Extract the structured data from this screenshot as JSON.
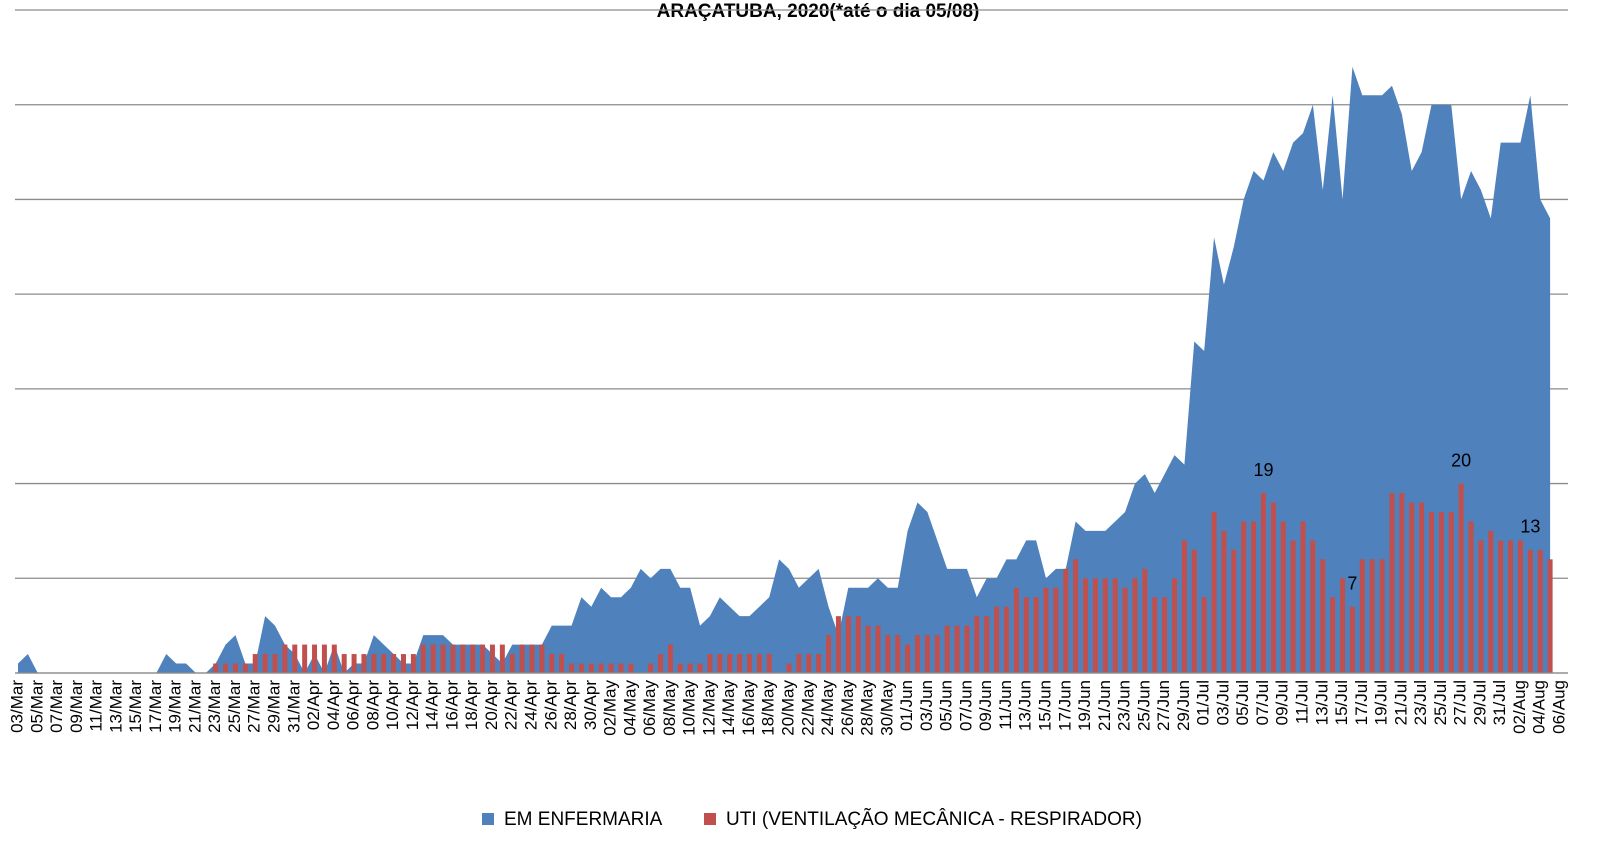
{
  "chart_data": {
    "type": "area_bar",
    "title": "ARAÇATUBA, 2020(*até o dia   05/08)",
    "categories": [
      "03/Mar",
      null,
      "05/Mar",
      null,
      "07/Mar",
      null,
      "09/Mar",
      null,
      "11/Mar",
      null,
      "13/Mar",
      null,
      "15/Mar",
      null,
      "17/Mar",
      null,
      "19/Mar",
      null,
      "21/Mar",
      null,
      "23/Mar",
      null,
      "25/Mar",
      null,
      "27/Mar",
      null,
      "29/Mar",
      null,
      "31/Mar",
      null,
      "02/Apr",
      null,
      "04/Apr",
      null,
      "06/Apr",
      null,
      "08/Apr",
      null,
      "10/Apr",
      null,
      "12/Apr",
      null,
      "14/Apr",
      null,
      "16/Apr",
      null,
      "18/Apr",
      null,
      "20/Apr",
      null,
      "22/Apr",
      null,
      "24/Apr",
      null,
      "26/Apr",
      null,
      "28/Apr",
      null,
      "30/Apr",
      null,
      "02/May",
      null,
      "04/May",
      null,
      "06/May",
      null,
      "08/May",
      null,
      "10/May",
      null,
      "12/May",
      null,
      "14/May",
      null,
      "16/May",
      null,
      "18/May",
      null,
      "20/May",
      null,
      "22/May",
      null,
      "24/May",
      null,
      "26/May",
      null,
      "28/May",
      null,
      "30/May",
      null,
      "01/Jun",
      null,
      "03/Jun",
      null,
      "05/Jun",
      null,
      "07/Jun",
      null,
      "09/Jun",
      null,
      "11/Jun",
      null,
      "13/Jun",
      null,
      "15/Jun",
      null,
      "17/Jun",
      null,
      "19/Jun",
      null,
      "21/Jun",
      null,
      "23/Jun",
      null,
      "25/Jun",
      null,
      "27/Jun",
      null,
      "29/Jun",
      null,
      "01/Jul",
      null,
      "03/Jul",
      null,
      "05/Jul",
      null,
      "07/Jul",
      null,
      "09/Jul",
      null,
      "11/Jul",
      null,
      "13/Jul",
      null,
      "15/Jul",
      null,
      "17/Jul",
      null,
      "19/Jul",
      null,
      "21/Jul",
      null,
      "23/Jul",
      null,
      "25/Jul",
      null,
      "27/Jul",
      null,
      "29/Jul",
      null,
      "31/Jul",
      null,
      "02/Aug",
      null,
      "04/Aug",
      null,
      "06/Aug"
    ],
    "series": [
      {
        "name": "EM ENFERMARIA",
        "color": "#4f81bd",
        "kind": "area",
        "values": [
          1,
          2,
          0,
          0,
          0,
          0,
          0,
          0,
          0,
          0,
          0,
          0,
          0,
          0,
          0,
          2,
          1,
          1,
          0,
          0,
          1,
          3,
          4,
          1,
          1,
          6,
          5,
          3,
          2,
          0,
          2,
          0,
          3,
          0,
          1,
          1,
          4,
          3,
          2,
          1,
          1,
          4,
          4,
          4,
          3,
          3,
          3,
          3,
          2,
          1,
          3,
          3,
          3,
          3,
          5,
          5,
          5,
          8,
          7,
          9,
          8,
          8,
          9,
          11,
          10,
          11,
          11,
          9,
          9,
          5,
          6,
          8,
          7,
          6,
          6,
          7,
          8,
          12,
          11,
          9,
          10,
          11,
          7,
          4,
          9,
          9,
          9,
          10,
          9,
          9,
          15,
          18,
          17,
          14,
          11,
          11,
          11,
          8,
          10,
          10,
          12,
          12,
          14,
          14,
          10,
          11,
          11,
          16,
          15,
          15,
          15,
          16,
          17,
          20,
          21,
          19,
          21,
          23,
          22,
          35,
          34,
          46,
          41,
          45,
          50,
          53,
          52,
          55,
          53,
          56,
          57,
          60,
          51,
          61,
          50,
          64,
          61,
          61,
          61,
          62,
          59,
          53,
          55,
          60,
          60,
          60,
          50,
          53,
          51,
          48,
          56,
          56,
          56,
          61,
          50,
          48,
          null
        ]
      },
      {
        "name": "UTI (VENTILAÇÃO MECÂNICA - RESPIRADOR)",
        "color": "#c0504d",
        "kind": "bar",
        "values": [
          0,
          0,
          0,
          0,
          0,
          0,
          0,
          0,
          0,
          0,
          0,
          0,
          0,
          0,
          0,
          0,
          0,
          0,
          0,
          0,
          1,
          1,
          1,
          1,
          2,
          2,
          2,
          3,
          3,
          3,
          3,
          3,
          3,
          2,
          2,
          2,
          2,
          2,
          2,
          2,
          2,
          3,
          3,
          3,
          3,
          3,
          3,
          3,
          3,
          3,
          2,
          3,
          3,
          3,
          2,
          2,
          1,
          1,
          1,
          1,
          1,
          1,
          1,
          0,
          1,
          2,
          3,
          1,
          1,
          1,
          2,
          2,
          2,
          2,
          2,
          2,
          2,
          0,
          1,
          2,
          2,
          2,
          4,
          6,
          6,
          6,
          5,
          5,
          4,
          4,
          3,
          4,
          4,
          4,
          5,
          5,
          5,
          6,
          6,
          7,
          7,
          9,
          8,
          8,
          9,
          9,
          11,
          12,
          10,
          10,
          10,
          10,
          9,
          10,
          11,
          8,
          8,
          10,
          14,
          13,
          8,
          17,
          15,
          13,
          16,
          16,
          19,
          18,
          16,
          14,
          16,
          14,
          12,
          8,
          10,
          7,
          12,
          12,
          12,
          19,
          19,
          18,
          18,
          17,
          17,
          17,
          20,
          16,
          14,
          15,
          14,
          14,
          14,
          13,
          13,
          12,
          null
        ],
        "value_labels": [
          null,
          null,
          null,
          null,
          null,
          null,
          null,
          null,
          null,
          null,
          null,
          null,
          null,
          null,
          null,
          null,
          null,
          null,
          null,
          null,
          null,
          null,
          null,
          null,
          null,
          null,
          null,
          null,
          null,
          null,
          null,
          null,
          null,
          null,
          null,
          null,
          null,
          null,
          null,
          null,
          null,
          null,
          null,
          null,
          null,
          null,
          null,
          null,
          null,
          null,
          null,
          null,
          null,
          null,
          null,
          null,
          null,
          null,
          null,
          null,
          null,
          null,
          null,
          null,
          null,
          null,
          null,
          null,
          null,
          null,
          null,
          null,
          null,
          null,
          null,
          null,
          null,
          null,
          null,
          null,
          null,
          null,
          null,
          null,
          null,
          null,
          null,
          null,
          null,
          null,
          null,
          null,
          null,
          null,
          null,
          null,
          null,
          null,
          null,
          null,
          null,
          null,
          null,
          null,
          null,
          null,
          null,
          null,
          null,
          null,
          null,
          null,
          null,
          null,
          null,
          null,
          null,
          null,
          null,
          null,
          null,
          null,
          null,
          null,
          null,
          null,
          "19",
          null,
          null,
          null,
          null,
          null,
          null,
          null,
          null,
          "7",
          null,
          null,
          null,
          null,
          null,
          null,
          null,
          null,
          null,
          null,
          "20",
          null,
          null,
          null,
          null,
          null,
          null,
          "13",
          null,
          null,
          null
        ]
      }
    ],
    "ylim": [
      0,
      70
    ],
    "yticks": [
      0,
      10,
      20,
      30,
      40,
      50,
      60,
      70
    ],
    "grid": true,
    "legend": "bottom"
  }
}
